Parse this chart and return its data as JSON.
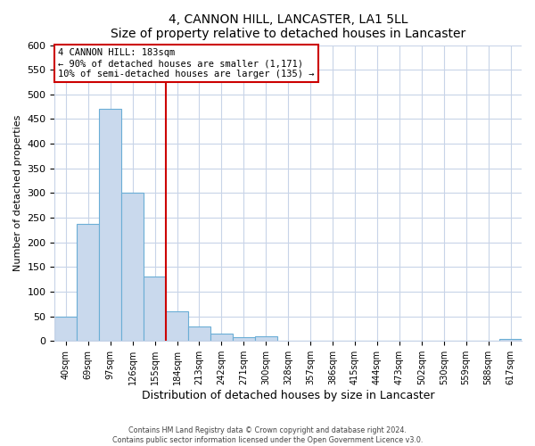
{
  "title": "4, CANNON HILL, LANCASTER, LA1 5LL",
  "subtitle": "Size of property relative to detached houses in Lancaster",
  "xlabel": "Distribution of detached houses by size in Lancaster",
  "ylabel": "Number of detached properties",
  "bar_labels": [
    "40sqm",
    "69sqm",
    "97sqm",
    "126sqm",
    "155sqm",
    "184sqm",
    "213sqm",
    "242sqm",
    "271sqm",
    "300sqm",
    "328sqm",
    "357sqm",
    "386sqm",
    "415sqm",
    "444sqm",
    "473sqm",
    "502sqm",
    "530sqm",
    "559sqm",
    "588sqm",
    "617sqm"
  ],
  "bar_values": [
    50,
    238,
    470,
    300,
    130,
    60,
    30,
    15,
    8,
    10,
    0,
    0,
    0,
    0,
    0,
    0,
    0,
    0,
    0,
    0,
    5
  ],
  "bar_color": "#c9d9ed",
  "bar_edge_color": "#6baed6",
  "annotation_title": "4 CANNON HILL: 183sqm",
  "annotation_line1": "← 90% of detached houses are smaller (1,171)",
  "annotation_line2": "10% of semi-detached houses are larger (135) →",
  "annotation_box_color": "#ffffff",
  "annotation_box_edge": "#cc0000",
  "vline_color": "#cc0000",
  "vline_x": 4.5,
  "ylim": [
    0,
    600
  ],
  "yticks": [
    0,
    50,
    100,
    150,
    200,
    250,
    300,
    350,
    400,
    450,
    500,
    550,
    600
  ],
  "footer1": "Contains HM Land Registry data © Crown copyright and database right 2024.",
  "footer2": "Contains public sector information licensed under the Open Government Licence v3.0.",
  "background_color": "#ffffff",
  "grid_color": "#c8d4e8"
}
